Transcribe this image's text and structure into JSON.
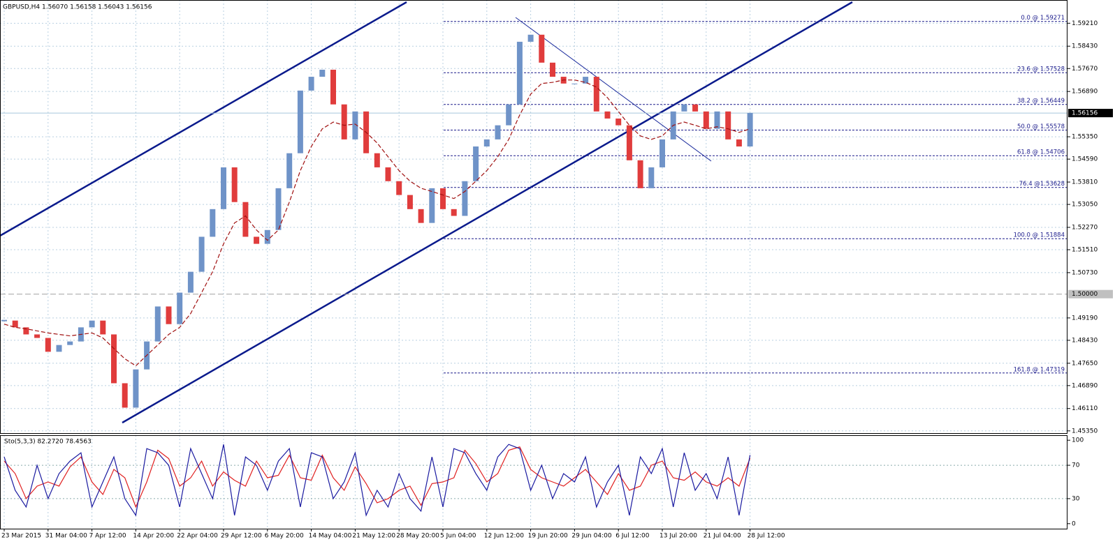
{
  "header": "GBPUSD,H4  1.56070 1.56158 1.56043 1.56156",
  "chart_data": [
    {
      "type": "candlestick",
      "categories": [
        "23 Mar 2015",
        null,
        null,
        null,
        "31 Mar 04:00",
        null,
        null,
        null,
        "7 Apr 12:00",
        null,
        null,
        null,
        "14 Apr 20:00",
        null,
        null,
        null,
        "22 Apr 04:00",
        null,
        null,
        null,
        "29 Apr 12:00",
        null,
        null,
        null,
        "6 May 20:00",
        null,
        null,
        null,
        "14 May 04:00",
        null,
        null,
        null,
        "21 May 12:00",
        null,
        null,
        null,
        "28 May 20:00",
        null,
        null,
        null,
        "5 Jun 04:00",
        null,
        null,
        null,
        "12 Jun 12:00",
        null,
        null,
        null,
        "19 Jun 20:00",
        null,
        null,
        null,
        "29 Jun 04:00",
        null,
        null,
        null,
        "6 Jul 12:00",
        null,
        null,
        null,
        "13 Jul 20:00",
        null,
        null,
        null,
        "21 Jul 04:00",
        null,
        null,
        null,
        "28 Jul 12:00"
      ],
      "values": [
        1.491,
        1.4887,
        1.4863,
        1.4851,
        1.4804,
        1.4827,
        1.4839,
        1.4887,
        1.491,
        1.4863,
        1.4697,
        1.4614,
        1.4744,
        1.4839,
        1.4958,
        1.4898,
        1.5005,
        1.5076,
        1.5195,
        1.5289,
        1.5431,
        1.5313,
        1.5195,
        1.5171,
        1.5218,
        1.536,
        1.5479,
        1.5692,
        1.5739,
        1.5763,
        1.5645,
        1.5526,
        1.5621,
        1.5479,
        1.5431,
        1.5384,
        1.5337,
        1.5289,
        1.5242,
        1.536,
        1.5289,
        1.5266,
        1.5384,
        1.5502,
        1.5526,
        1.5574,
        1.5645,
        1.5858,
        1.5882,
        1.5787,
        1.5739,
        1.5716,
        1.5716,
        1.5739,
        1.5621,
        1.5597,
        1.5574,
        1.5455,
        1.536,
        1.5431,
        1.5526,
        1.5621,
        1.5645,
        1.5621,
        1.5562,
        1.5621,
        1.5526,
        1.5502,
        1.5616
      ],
      "up_color": "#6f93c8",
      "down_color": "#e03c3c",
      "ma_values": [
        1.4898,
        1.4887,
        1.4882,
        1.4875,
        1.4868,
        1.4863,
        1.4858,
        1.4863,
        1.4868,
        1.4851,
        1.4815,
        1.478,
        1.4756,
        1.4792,
        1.4827,
        1.4863,
        1.4887,
        1.4934,
        1.5005,
        1.5076,
        1.5171,
        1.5242,
        1.5266,
        1.5218,
        1.5183,
        1.5218,
        1.5313,
        1.542,
        1.5502,
        1.5562,
        1.5585,
        1.5574,
        1.5578,
        1.555,
        1.5514,
        1.5467,
        1.542,
        1.5384,
        1.536,
        1.5349,
        1.5337,
        1.5325,
        1.5349,
        1.5384,
        1.542,
        1.5467,
        1.5526,
        1.5609,
        1.568,
        1.5716,
        1.572,
        1.5728,
        1.5728,
        1.572,
        1.5704,
        1.5668,
        1.5621,
        1.5574,
        1.5538,
        1.5526,
        1.5538,
        1.5574,
        1.5585,
        1.5574,
        1.5562,
        1.5569,
        1.5562,
        1.555,
        1.5562
      ],
      "ma_color": "#a01010",
      "ylim": [
        1.4525,
        1.6
      ],
      "yticks": [
        {
          "value": 1.5921,
          "label": "1.59210"
        },
        {
          "value": 1.5843,
          "label": "1.58430"
        },
        {
          "value": 1.5767,
          "label": "1.57670"
        },
        {
          "value": 1.5689,
          "label": "1.56890"
        },
        {
          "value": 1.5535,
          "label": "1.55350"
        },
        {
          "value": 1.5459,
          "label": "1.54590"
        },
        {
          "value": 1.5381,
          "label": "1.53810"
        },
        {
          "value": 1.5305,
          "label": "1.53050"
        },
        {
          "value": 1.5227,
          "label": "1.52270"
        },
        {
          "value": 1.5151,
          "label": "1.51510"
        },
        {
          "value": 1.5073,
          "label": "1.50730"
        },
        {
          "value": 1.4919,
          "label": "1.49190"
        },
        {
          "value": 1.4843,
          "label": "1.48430"
        },
        {
          "value": 1.4765,
          "label": "1.47650"
        },
        {
          "value": 1.4689,
          "label": "1.46890"
        },
        {
          "value": 1.4611,
          "label": "1.46110"
        },
        {
          "value": 1.4535,
          "label": "1.45350"
        }
      ],
      "grid": true,
      "current_price": {
        "value": 1.56156,
        "label": "1.56156"
      },
      "level_line": {
        "value": 1.5,
        "label": "1.50000"
      },
      "fib_color": "#1c1c8c",
      "fib_levels": [
        {
          "value": 1.59271,
          "label": "0.0 @ 1.59271"
        },
        {
          "value": 1.57528,
          "label": "23.6 @ 1.57528"
        },
        {
          "value": 1.56449,
          "label": "38.2 @ 1.56449"
        },
        {
          "value": 1.55578,
          "label": "50.0 @ 1.55578"
        },
        {
          "value": 1.54706,
          "label": "61.8 @ 1.54706"
        },
        {
          "value": 1.53628,
          "label": "76.4 @1.53628"
        },
        {
          "value": 1.51884,
          "label": "100.0 @ 1.51884"
        },
        {
          "value": 1.47319,
          "label": "161.8 @ 1.47319"
        }
      ]
    },
    {
      "type": "line",
      "title": "Sto(5,3,3) 82.2720 78.4563",
      "main_values": [
        80,
        40,
        20,
        70,
        30,
        60,
        75,
        85,
        20,
        50,
        80,
        30,
        10,
        90,
        85,
        70,
        20,
        90,
        60,
        30,
        95,
        10,
        80,
        70,
        40,
        75,
        90,
        20,
        85,
        80,
        30,
        50,
        85,
        10,
        40,
        20,
        60,
        30,
        15,
        80,
        20,
        90,
        85,
        60,
        40,
        80,
        95,
        90,
        40,
        70,
        30,
        60,
        50,
        80,
        20,
        50,
        70,
        10,
        80,
        60,
        90,
        20,
        85,
        40,
        60,
        30,
        80,
        10,
        82.27
      ],
      "main_color": "#1a1aa0",
      "signal_values": [
        75,
        60,
        30,
        45,
        50,
        45,
        68,
        80,
        50,
        35,
        65,
        55,
        20,
        50,
        88,
        78,
        45,
        55,
        75,
        45,
        62,
        52,
        45,
        75,
        55,
        58,
        82,
        55,
        52,
        82,
        55,
        40,
        68,
        48,
        25,
        30,
        40,
        45,
        22,
        48,
        50,
        55,
        88,
        72,
        50,
        60,
        88,
        92,
        65,
        55,
        50,
        45,
        55,
        65,
        50,
        35,
        60,
        40,
        45,
        70,
        75,
        55,
        52,
        62,
        50,
        45,
        55,
        45,
        78.46
      ],
      "signal_color": "#e02020",
      "ylim": [
        -6,
        106
      ],
      "yticks": [
        0,
        30,
        70,
        100
      ],
      "levels": [
        30,
        70
      ]
    }
  ]
}
